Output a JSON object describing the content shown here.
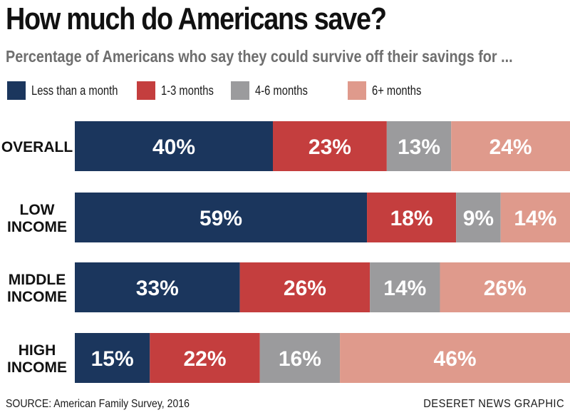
{
  "chart_data": {
    "type": "bar",
    "orientation": "horizontal",
    "stacked": true,
    "title": "How much do Americans save?",
    "subtitle": "Percentage of Americans who say they could survive off their savings for ...",
    "categories": [
      [
        "OVERALL"
      ],
      [
        "LOW",
        "INCOME"
      ],
      [
        "MIDDLE",
        "INCOME"
      ],
      [
        "HIGH",
        "INCOME"
      ]
    ],
    "series": [
      {
        "name": "Less than a month",
        "color": "#1b365d",
        "values": [
          40,
          59,
          33,
          15
        ],
        "labels": [
          "40%",
          "59%",
          "33%",
          "15%"
        ]
      },
      {
        "name": "1-3 months",
        "color": "#c43e3e",
        "values": [
          23,
          18,
          26,
          22
        ],
        "labels": [
          "23%",
          "18%",
          "26%",
          "22%"
        ]
      },
      {
        "name": "4-6 months",
        "color": "#9b9b9d",
        "values": [
          13,
          9,
          14,
          16
        ],
        "labels": [
          "13%",
          "9%",
          "14%",
          "16%"
        ]
      },
      {
        "name": "6+ months",
        "color": "#df9a8c",
        "values": [
          24,
          14,
          26,
          46
        ],
        "labels": [
          "24%",
          "14%",
          "26%",
          "46%"
        ]
      }
    ],
    "xlim": [
      0,
      100
    ],
    "grid": false,
    "legend": "top"
  },
  "footer": {
    "source": "SOURCE: American Family Survey, 2016",
    "credit": "DESERET NEWS GRAPHIC"
  }
}
